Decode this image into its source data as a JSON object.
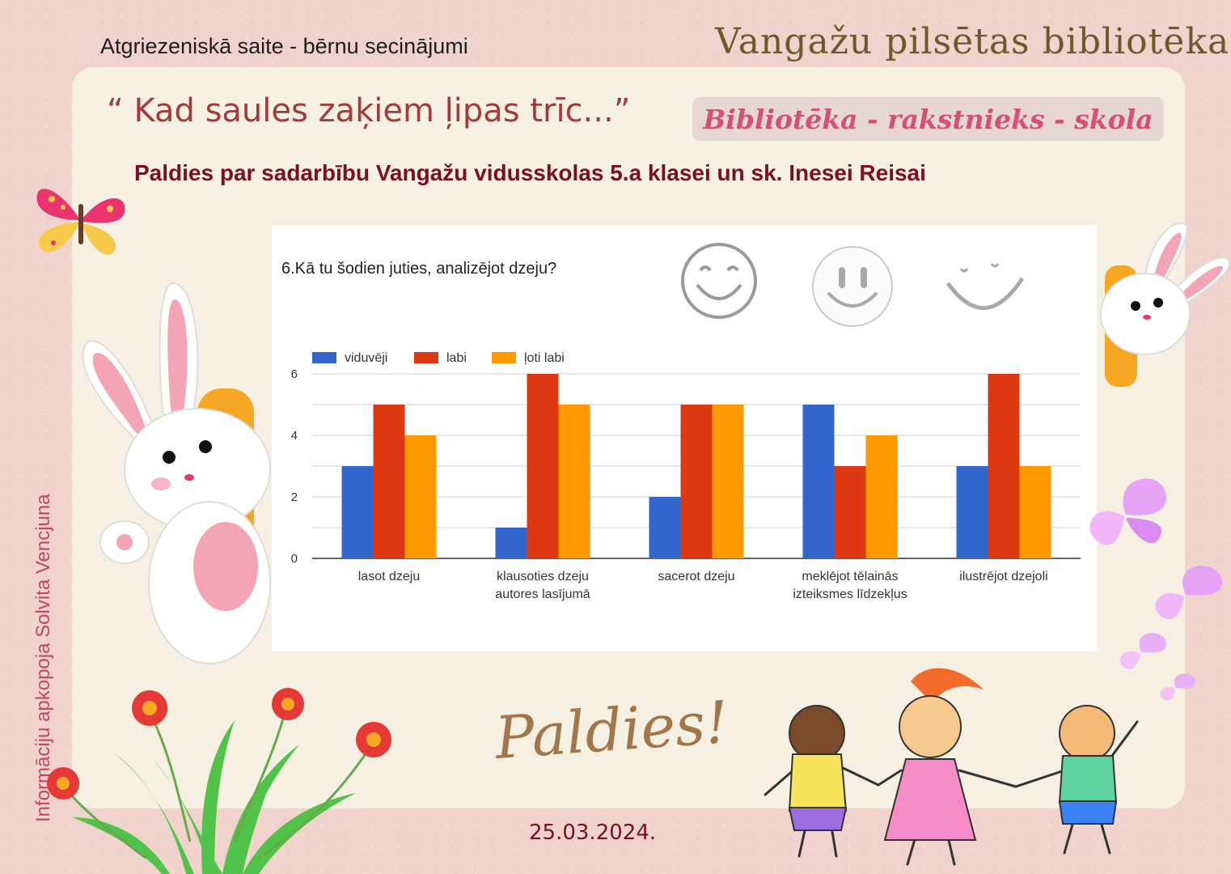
{
  "header": {
    "left_title": "Atgriezeniskā saite - bērnu secinājumi",
    "brand": "Vangažu pilsētas bibliotēka",
    "quote": "“ Kad saules zaķiem ļipas trīc...”",
    "tag": "Bibliotēka - rakstnieks - skola",
    "thanks_line": "Paldies par sadarbību Vangažu vidusskolas 5.a klasei un sk. Inesei Reisai"
  },
  "chart_data": {
    "type": "bar",
    "title": "6.Kā tu šodien juties, analizējot dzeju?",
    "categories": [
      [
        "lasot dzeju"
      ],
      [
        "klausoties dzeju",
        "autores lasījumā"
      ],
      [
        "sacerot dzeju"
      ],
      [
        "meklējot tēlainās",
        "izteiksmes līdzekļus"
      ],
      [
        "ilustrējot dzejoli"
      ]
    ],
    "series": [
      {
        "name": "viduvēji",
        "color": "#3366cc",
        "values": [
          3,
          1,
          2,
          5,
          3
        ]
      },
      {
        "name": "labi",
        "color": "#dc3912",
        "values": [
          5,
          6,
          5,
          3,
          6
        ]
      },
      {
        "name": "ļoti labi",
        "color": "#ff9900",
        "values": [
          4,
          5,
          5,
          4,
          3
        ]
      }
    ],
    "yticks": [
      "0",
      "2",
      "4",
      "6"
    ],
    "ylim": [
      0,
      6
    ],
    "legend": "top-left",
    "grid": true
  },
  "side_note": "Informāciju apkopoja Solvita Vencjuna",
  "footer": {
    "paldies": "Paldies!",
    "date": "25.03.2024."
  },
  "decor": {
    "icons": [
      "butterfly-icon",
      "bunny-icon",
      "smiley-icon",
      "flower-icon",
      "kids-icon"
    ],
    "accent": "#d84f75"
  }
}
